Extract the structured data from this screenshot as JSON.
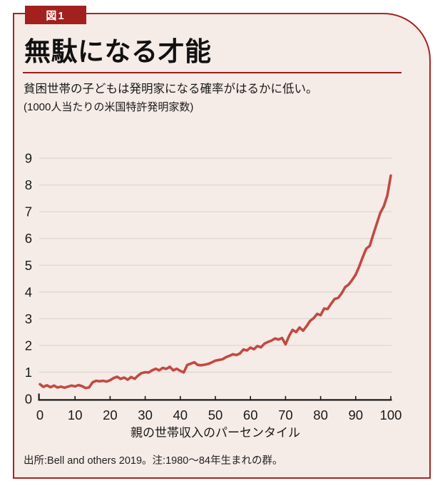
{
  "figure": {
    "tag_label": "図1",
    "title": "無駄になる才能",
    "subtitle": "貧困世帯の子どもは発明家になる確率がはるかに低い。",
    "unit_note": "(1000人当たりの米国特許発明家数)",
    "source_note": "出所:Bell and others 2019。注:1980〜84年生まれの群。"
  },
  "colors": {
    "card_background": "#f5ebe7",
    "card_border": "#a8241f",
    "badge_background": "#a2201d",
    "title_rule": "#9e1b1b",
    "line": "#c14a41",
    "gridline": "#ded7d1",
    "axis": "#1a1a1a",
    "text": "#1a1a1a"
  },
  "chart_data": {
    "type": "line",
    "title": "無駄になる才能",
    "subtitle": "貧困世帯の子どもは発明家になる確率がはるかに低い。",
    "xlabel": "親の世帯収入のパーセンタイル",
    "ylabel": "(1000人当たりの米国特許発明家数)",
    "xlim": [
      0,
      100
    ],
    "ylim": [
      0,
      9
    ],
    "x_ticks": [
      0,
      10,
      20,
      30,
      40,
      50,
      60,
      70,
      80,
      90,
      100
    ],
    "y_ticks": [
      0,
      1,
      2,
      3,
      4,
      5,
      6,
      7,
      8,
      9
    ],
    "grid": "horizontal-only",
    "legend": "none",
    "series": [
      {
        "name": "1000人当たりの米国特許発明家数",
        "color": "#c14a41",
        "x": [
          0,
          1,
          2,
          3,
          4,
          5,
          6,
          7,
          8,
          9,
          10,
          11,
          12,
          13,
          14,
          15,
          16,
          17,
          18,
          19,
          20,
          21,
          22,
          23,
          24,
          25,
          26,
          27,
          28,
          29,
          30,
          31,
          32,
          33,
          34,
          35,
          36,
          37,
          38,
          39,
          40,
          41,
          42,
          43,
          44,
          45,
          46,
          47,
          48,
          49,
          50,
          51,
          52,
          53,
          54,
          55,
          56,
          57,
          58,
          59,
          60,
          61,
          62,
          63,
          64,
          65,
          66,
          67,
          68,
          69,
          70,
          71,
          72,
          73,
          74,
          75,
          76,
          77,
          78,
          79,
          80,
          81,
          82,
          83,
          84,
          85,
          86,
          87,
          88,
          89,
          90,
          91,
          92,
          93,
          94,
          95,
          96,
          97,
          98,
          99,
          100
        ],
        "values": [
          0.55,
          0.45,
          0.51,
          0.44,
          0.5,
          0.43,
          0.46,
          0.42,
          0.46,
          0.5,
          0.47,
          0.52,
          0.48,
          0.41,
          0.43,
          0.62,
          0.68,
          0.66,
          0.68,
          0.65,
          0.7,
          0.78,
          0.83,
          0.75,
          0.8,
          0.72,
          0.82,
          0.75,
          0.88,
          0.97,
          1.0,
          0.99,
          1.07,
          1.13,
          1.07,
          1.16,
          1.12,
          1.2,
          1.07,
          1.13,
          1.05,
          0.99,
          1.27,
          1.32,
          1.37,
          1.27,
          1.26,
          1.28,
          1.31,
          1.37,
          1.43,
          1.46,
          1.48,
          1.56,
          1.61,
          1.67,
          1.64,
          1.7,
          1.85,
          1.81,
          1.92,
          1.86,
          1.98,
          1.93,
          2.07,
          2.13,
          2.18,
          2.26,
          2.22,
          2.28,
          2.04,
          2.35,
          2.58,
          2.5,
          2.67,
          2.55,
          2.72,
          2.92,
          3.02,
          3.18,
          3.13,
          3.38,
          3.36,
          3.56,
          3.74,
          3.78,
          3.95,
          4.18,
          4.28,
          4.45,
          4.65,
          4.95,
          5.3,
          5.62,
          5.72,
          6.15,
          6.55,
          6.95,
          7.2,
          7.6,
          8.35
        ]
      }
    ]
  }
}
